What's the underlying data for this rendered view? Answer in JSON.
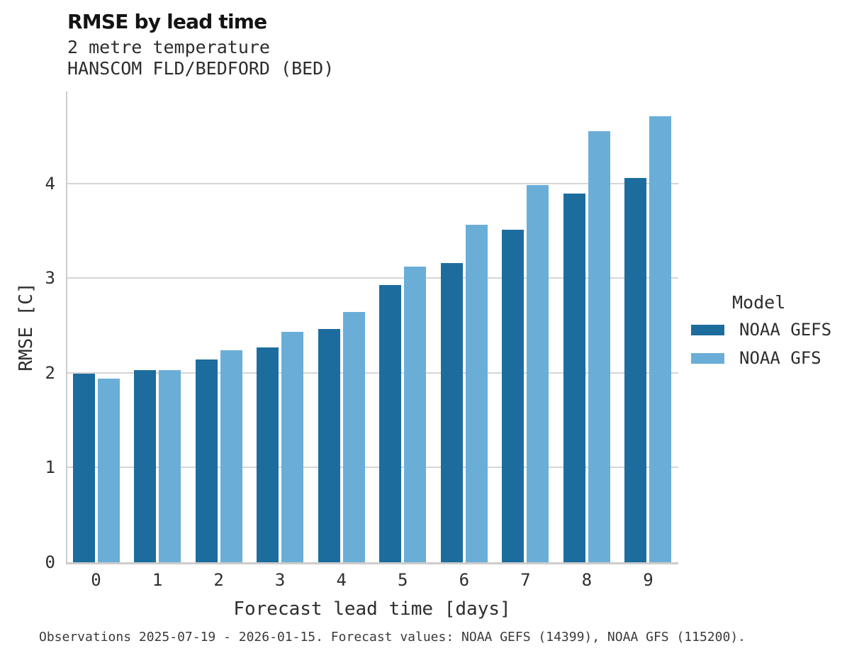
{
  "title": "RMSE by lead time",
  "subtitle_line1": "2 metre temperature",
  "subtitle_line2": "HANSCOM FLD/BEDFORD (BED)",
  "caption": "Observations 2025-07-19 - 2026-01-15. Forecast values: NOAA GEFS (14399), NOAA GFS (115200).",
  "legend": {
    "title": "Model",
    "entries": [
      {
        "label": "NOAA GEFS",
        "color": "#1c6d9e"
      },
      {
        "label": "NOAA GFS",
        "color": "#6aaed8"
      }
    ]
  },
  "colors": {
    "gefs_bar": "#1c6d9e",
    "gfs_bar": "#6aaed8",
    "gridline": "#d6d6d6",
    "spine": "#cccccc",
    "title_text": "#141414",
    "body_text": "#2d2d2d"
  },
  "chart_data": {
    "type": "bar",
    "title": "RMSE by lead time",
    "subtitle": [
      "2 metre temperature",
      "HANSCOM FLD/BEDFORD (BED)"
    ],
    "xlabel": "Forecast lead time [days]",
    "ylabel": "RMSE [C]",
    "categories": [
      "0",
      "1",
      "2",
      "3",
      "4",
      "5",
      "6",
      "7",
      "8",
      "9"
    ],
    "series": [
      {
        "name": "NOAA GEFS",
        "color": "#1c6d9e",
        "values": [
          1.99,
          2.03,
          2.14,
          2.27,
          2.46,
          2.93,
          3.16,
          3.51,
          3.89,
          4.06
        ]
      },
      {
        "name": "NOAA GFS",
        "color": "#6aaed8",
        "values": [
          1.94,
          2.03,
          2.24,
          2.43,
          2.64,
          3.12,
          3.56,
          3.98,
          4.55,
          4.71
        ]
      }
    ],
    "ylim": [
      0,
      4.95
    ],
    "yticks": [
      0,
      1,
      2,
      3,
      4
    ],
    "grid": "horizontal",
    "legend_position": "right",
    "legend_title": "Model",
    "caption": "Observations 2025-07-19 - 2026-01-15. Forecast values: NOAA GEFS (14399), NOAA GFS (115200)."
  }
}
